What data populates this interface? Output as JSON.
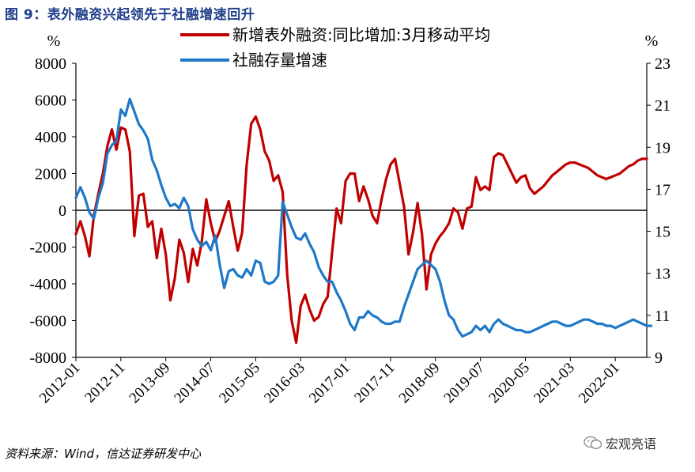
{
  "figure": {
    "title": "图 9：表外融资兴起领先于社融增速回升",
    "source": "资料来源：Wind，信达证券研发中心",
    "watermark": "宏观亮语"
  },
  "chart_data": {
    "type": "line",
    "left_axis": {
      "unit_label": "%",
      "ylim": [
        -8000,
        8000
      ],
      "ticks": [
        8000,
        6000,
        4000,
        2000,
        0,
        -2000,
        -4000,
        -6000,
        -8000
      ],
      "tick_labels": [
        "8000",
        "6000",
        "4000",
        "2000",
        "0",
        "-2000",
        "-4000",
        "-6000",
        "-8000"
      ]
    },
    "right_axis": {
      "unit_label": "%",
      "ylim": [
        9,
        23
      ],
      "ticks": [
        23,
        21,
        19,
        17,
        15,
        13,
        11,
        9
      ],
      "tick_labels": [
        "23",
        "21",
        "19",
        "17",
        "15",
        "13",
        "11",
        "9"
      ]
    },
    "x_axis": {
      "start": "2012-01",
      "end": "2022-09",
      "tick_labels": [
        "2012-01",
        "2012-11",
        "2013-09",
        "2014-07",
        "2015-05",
        "2016-03",
        "2017-01",
        "2017-11",
        "2018-09",
        "2019-07",
        "2020-05",
        "2021-03",
        "2022-01"
      ],
      "tick_index": [
        0,
        10,
        20,
        30,
        40,
        50,
        60,
        70,
        80,
        90,
        100,
        110,
        120
      ]
    },
    "legend_position": "top",
    "series": [
      {
        "name": "新增表外融资:同比增加:3月移动平均",
        "axis": "left",
        "color": "#c00000",
        "values": [
          -1300,
          -600,
          -1400,
          -2500,
          -300,
          900,
          2000,
          3500,
          4400,
          3300,
          4500,
          4400,
          3200,
          -1400,
          800,
          900,
          -900,
          -600,
          -2600,
          -1000,
          -2400,
          -4900,
          -3700,
          -1600,
          -2300,
          -3900,
          -2100,
          -3000,
          -1700,
          600,
          -700,
          -1700,
          -1100,
          -300,
          500,
          -900,
          -2200,
          -1200,
          2500,
          4700,
          5100,
          4400,
          3200,
          2700,
          1600,
          1900,
          1000,
          -3500,
          -6000,
          -7200,
          -5200,
          -4600,
          -5400,
          -6000,
          -5800,
          -5100,
          -4700,
          -2300,
          100,
          -700,
          1600,
          2000,
          2000,
          500,
          1300,
          600,
          -300,
          -700,
          600,
          1700,
          2500,
          2800,
          1500,
          200,
          -2400,
          -1200,
          400,
          -1300,
          -4300,
          -2400,
          -1800,
          -1400,
          -1100,
          -700,
          100,
          -100,
          -1000,
          100,
          200,
          1800,
          1100,
          1300,
          1100,
          2900,
          3100,
          3000,
          2500,
          2000,
          1500,
          1800,
          1900,
          1200,
          900,
          1100,
          1300,
          1600,
          1900,
          2100,
          2300,
          2500,
          2600,
          2600,
          2500,
          2400,
          2300,
          2100,
          1900,
          1800,
          1700,
          1800,
          1900,
          2000,
          2200,
          2400,
          2500,
          2700,
          2800,
          2800
        ]
      },
      {
        "name": "社融存量增速",
        "axis": "right",
        "color": "#1f78c8",
        "values": [
          16.6,
          17.1,
          16.6,
          15.9,
          15.6,
          16.6,
          17.3,
          18.7,
          19.1,
          19.3,
          20.8,
          20.5,
          21.3,
          20.7,
          20.1,
          19.8,
          19.4,
          18.4,
          17.9,
          17.2,
          16.6,
          16.2,
          16.3,
          16.1,
          16.6,
          16.2,
          15.1,
          14.6,
          14.3,
          14.5,
          14.1,
          14.8,
          13.4,
          12.3,
          13.1,
          13.2,
          12.9,
          12.8,
          13.2,
          12.9,
          13.6,
          13.5,
          12.6,
          12.5,
          12.6,
          12.9,
          16.4,
          15.8,
          15.2,
          14.7,
          14.6,
          14.9,
          14.4,
          14.0,
          13.3,
          12.9,
          12.6,
          12.6,
          12.1,
          11.7,
          11.2,
          10.6,
          10.3,
          10.9,
          10.9,
          11.2,
          11.0,
          10.9,
          10.7,
          10.6,
          10.6,
          10.7,
          10.7,
          11.4,
          12.0,
          12.6,
          13.2,
          13.4,
          13.6,
          13.4,
          13.2,
          12.6,
          11.7,
          11.0,
          10.8,
          10.3,
          10.0,
          10.1,
          10.2,
          10.5,
          10.3,
          10.5,
          10.2,
          10.6,
          10.8,
          10.6,
          10.5,
          10.4,
          10.3,
          10.3,
          10.2,
          10.2,
          10.3,
          10.4,
          10.5,
          10.6,
          10.7,
          10.7,
          10.6,
          10.5,
          10.5,
          10.6,
          10.7,
          10.8,
          10.8,
          10.7,
          10.6,
          10.6,
          10.5,
          10.5,
          10.4,
          10.5,
          10.6,
          10.7,
          10.8,
          10.7,
          10.6,
          10.5,
          10.5
        ]
      }
    ]
  }
}
